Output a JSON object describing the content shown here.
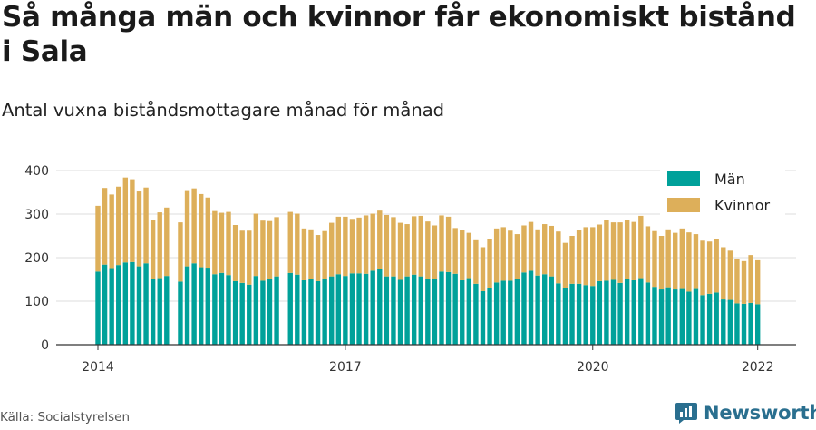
{
  "title": "Så många män och kvinnor får ekonomiskt bistånd i Sala",
  "subtitle": "Antal vuxna biståndsmottagare månad för månad",
  "source": "Källa: Socialstyrelsen",
  "brand": {
    "name": "Newsworthy",
    "icon": "newsworthy-logo-icon",
    "color": "#2a6f8f"
  },
  "chart_data": {
    "type": "bar",
    "stacked": true,
    "ylim": [
      0,
      400
    ],
    "yticks": [
      0,
      100,
      200,
      300,
      400
    ],
    "xtick_labels": [
      "2014",
      "2017",
      "2020",
      "2022"
    ],
    "grid": true,
    "legend_position": "top-right",
    "colors": {
      "man": "#00a19a",
      "kvinnor": "#ddaf5a"
    },
    "x": [
      "2014-01",
      "2014-02",
      "2014-03",
      "2014-04",
      "2014-05",
      "2014-06",
      "2014-07",
      "2014-08",
      "2014-09",
      "2014-10",
      "2014-11",
      "2014-12",
      "2015-01",
      "2015-02",
      "2015-03",
      "2015-04",
      "2015-05",
      "2015-06",
      "2015-07",
      "2015-08",
      "2015-09",
      "2015-10",
      "2015-11",
      "2015-12",
      "2016-01",
      "2016-02",
      "2016-03",
      "2016-04",
      "2016-05",
      "2016-06",
      "2016-07",
      "2016-08",
      "2016-09",
      "2016-10",
      "2016-11",
      "2016-12",
      "2017-01",
      "2017-02",
      "2017-03",
      "2017-04",
      "2017-05",
      "2017-06",
      "2017-07",
      "2017-08",
      "2017-09",
      "2017-10",
      "2017-11",
      "2017-12",
      "2018-01",
      "2018-02",
      "2018-03",
      "2018-04",
      "2018-05",
      "2018-06",
      "2018-07",
      "2018-08",
      "2018-09",
      "2018-10",
      "2018-11",
      "2018-12",
      "2019-01",
      "2019-02",
      "2019-03",
      "2019-04",
      "2019-05",
      "2019-06",
      "2019-07",
      "2019-08",
      "2019-09",
      "2019-10",
      "2019-11",
      "2019-12",
      "2020-01",
      "2020-02",
      "2020-03",
      "2020-04",
      "2020-05",
      "2020-06",
      "2020-07",
      "2020-08",
      "2020-09",
      "2020-10",
      "2020-11",
      "2020-12",
      "2021-01",
      "2021-02",
      "2021-03",
      "2021-04",
      "2021-05",
      "2021-06",
      "2021-07",
      "2021-08",
      "2021-09",
      "2021-10",
      "2021-11",
      "2021-12",
      "2022-01"
    ],
    "series": [
      {
        "name": "Män",
        "values": [
          168,
          184,
          176,
          183,
          189,
          190,
          180,
          187,
          151,
          153,
          158,
          null,
          145,
          180,
          187,
          178,
          177,
          162,
          165,
          160,
          146,
          142,
          138,
          158,
          147,
          150,
          157,
          null,
          165,
          161,
          148,
          151,
          146,
          150,
          157,
          162,
          158,
          164,
          164,
          163,
          170,
          175,
          157,
          157,
          149,
          157,
          161,
          157,
          150,
          150,
          168,
          167,
          163,
          148,
          153,
          140,
          123,
          131,
          143,
          147,
          147,
          151,
          166,
          170,
          159,
          162,
          157,
          141,
          130,
          140,
          140,
          137,
          135,
          146,
          147,
          149,
          142,
          150,
          148,
          153,
          143,
          133,
          127,
          132,
          127,
          128,
          122,
          128,
          114,
          117,
          120,
          104,
          103,
          95,
          94,
          96,
          93
        ]
      },
      {
        "name": "Kvinnor",
        "values": [
          151,
          176,
          169,
          180,
          195,
          190,
          172,
          174,
          135,
          151,
          157,
          null,
          136,
          175,
          172,
          168,
          161,
          145,
          138,
          145,
          129,
          120,
          124,
          143,
          138,
          134,
          136,
          null,
          140,
          140,
          119,
          114,
          106,
          111,
          123,
          132,
          136,
          125,
          128,
          134,
          131,
          133,
          141,
          136,
          131,
          120,
          134,
          139,
          133,
          124,
          129,
          127,
          105,
          116,
          104,
          100,
          101,
          111,
          124,
          123,
          115,
          103,
          108,
          112,
          106,
          115,
          116,
          119,
          104,
          110,
          123,
          133,
          135,
          130,
          139,
          132,
          139,
          136,
          134,
          143,
          129,
          128,
          123,
          133,
          130,
          139,
          136,
          126,
          125,
          120,
          122,
          120,
          113,
          103,
          98,
          110,
          101
        ]
      }
    ]
  }
}
